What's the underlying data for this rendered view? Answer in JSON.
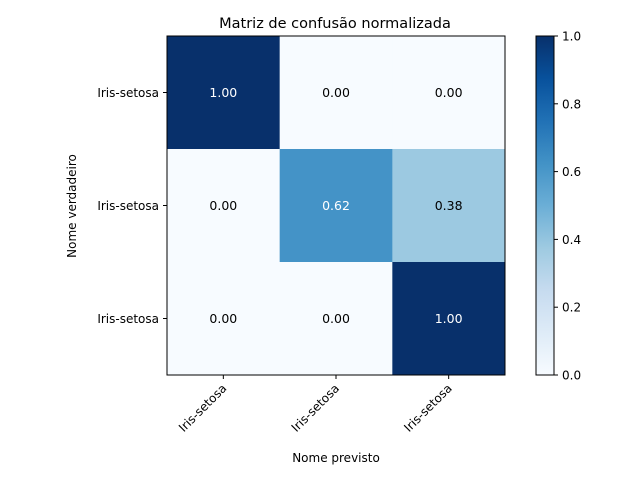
{
  "chart_data": {
    "type": "heatmap",
    "title": "Matriz de confusão normalizada",
    "xlabel": "Nome previsto",
    "ylabel": "Nome verdadeiro",
    "x_categories": [
      "Iris-setosa",
      "Iris-setosa",
      "Iris-setosa"
    ],
    "y_categories": [
      "Iris-setosa",
      "Iris-setosa",
      "Iris-setosa"
    ],
    "values": [
      [
        1.0,
        0.0,
        0.0
      ],
      [
        0.0,
        0.62,
        0.38
      ],
      [
        0.0,
        0.0,
        1.0
      ]
    ],
    "cell_labels": [
      [
        "1.00",
        "0.00",
        "0.00"
      ],
      [
        "0.00",
        "0.62",
        "0.38"
      ],
      [
        "0.00",
        "0.00",
        "1.00"
      ]
    ],
    "colormap": "Blues",
    "colorbar": {
      "range": [
        0.0,
        1.0
      ],
      "ticks": [
        0.0,
        0.2,
        0.4,
        0.6,
        0.8,
        1.0
      ],
      "tick_labels": [
        "0.0",
        "0.2",
        "0.4",
        "0.6",
        "0.8",
        "1.0"
      ]
    }
  }
}
